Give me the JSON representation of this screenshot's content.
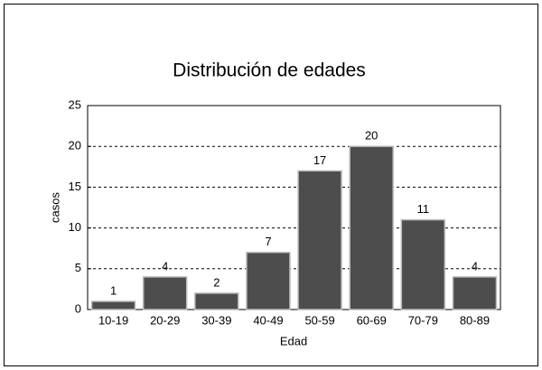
{
  "chart_data": {
    "type": "bar",
    "title": "Distribución de edades",
    "x_label": "Edad",
    "y_label": "casos",
    "categories": [
      "10-19",
      "20-29",
      "30-39",
      "40-49",
      "50-59",
      "60-69",
      "70-79",
      "80-89"
    ],
    "values": [
      1,
      4,
      2,
      7,
      17,
      20,
      11,
      4
    ],
    "color": "#4d4d4d",
    "ylim": [
      0,
      25
    ],
    "yticks": [
      0,
      5,
      10,
      15,
      20,
      25
    ],
    "grid": true
  }
}
